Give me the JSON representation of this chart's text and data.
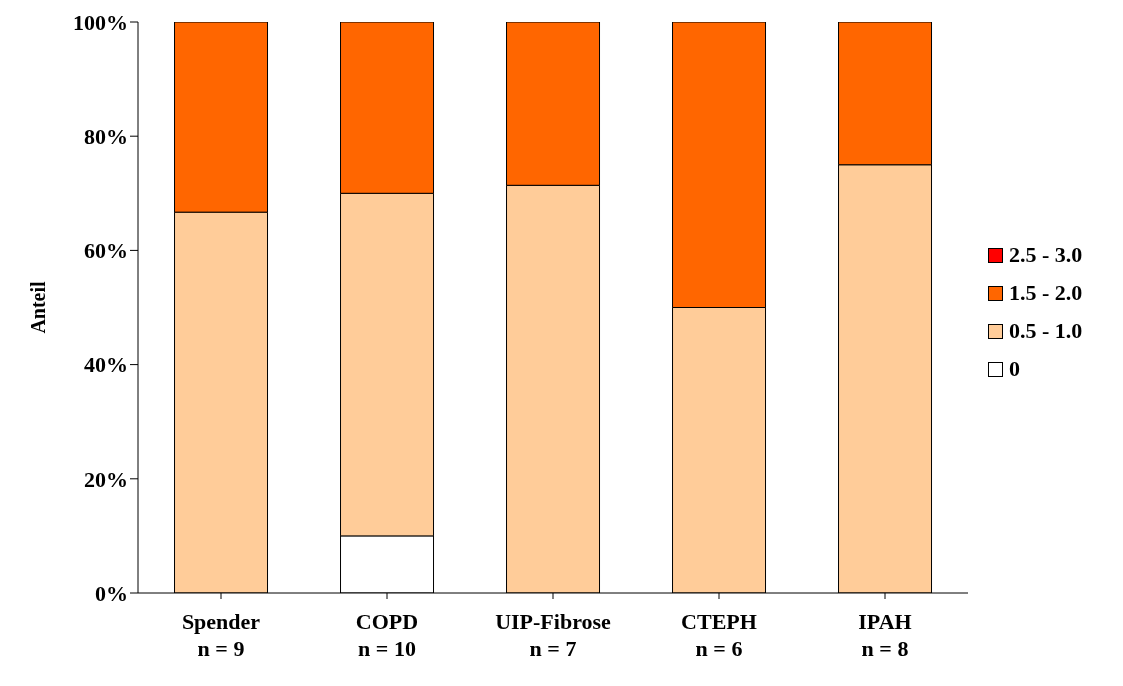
{
  "chart_data": {
    "type": "bar",
    "stacked": true,
    "ylabel": "Anteil",
    "categories": [
      "Spender\nn = 9",
      "COPD\nn = 10",
      "UIP-Fibrose\nn = 7",
      "CTEPH\nn = 6",
      "IPAH\nn = 8"
    ],
    "series": [
      {
        "name": "0",
        "color": "#ffffff",
        "values": [
          0,
          10,
          0,
          0,
          0
        ]
      },
      {
        "name": "0.5 - 1.0",
        "color": "#ffcc99",
        "values": [
          66.7,
          60,
          71.4,
          50,
          75
        ]
      },
      {
        "name": "1.5 - 2.0",
        "color": "#ff6600",
        "values": [
          33.3,
          30,
          28.6,
          50,
          25
        ]
      },
      {
        "name": "2.5 - 3.0",
        "color": "#ff0000",
        "values": [
          0,
          0,
          0,
          0,
          0
        ]
      }
    ],
    "ylim": [
      0,
      100
    ],
    "yticks": [
      {
        "value": 0,
        "label": "0%"
      },
      {
        "value": 20,
        "label": "20%"
      },
      {
        "value": 40,
        "label": "40%"
      },
      {
        "value": 60,
        "label": "60%"
      },
      {
        "value": 80,
        "label": "80%"
      },
      {
        "value": 100,
        "label": "100%"
      }
    ],
    "grid": false,
    "legend": "right"
  }
}
